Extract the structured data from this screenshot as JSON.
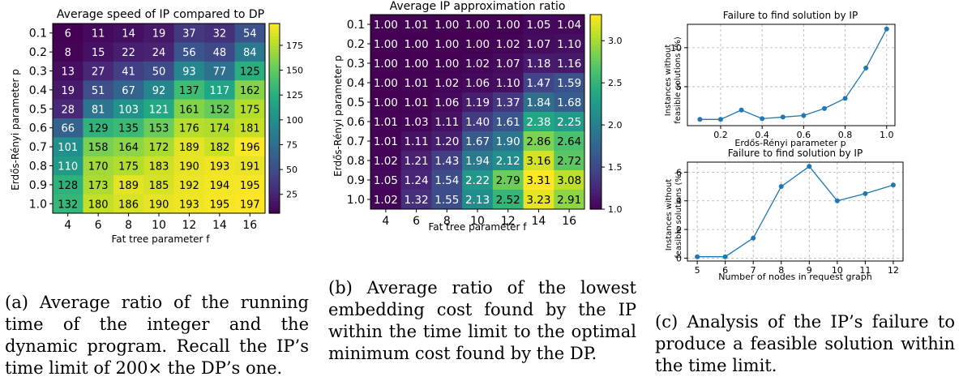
{
  "chart_data": [
    {
      "type": "heatmap",
      "title": "Average speed of IP compared to DP",
      "xlabel": "Fat tree parameter f",
      "ylabel": "Erdős-Rényi parameter p",
      "x_categories": [
        "4",
        "6",
        "8",
        "10",
        "12",
        "14",
        "16"
      ],
      "y_categories": [
        "0.1",
        "0.2",
        "0.3",
        "0.4",
        "0.5",
        "0.6",
        "0.7",
        "0.8",
        "0.9",
        "1.0"
      ],
      "values": [
        [
          6,
          11,
          14,
          19,
          37,
          32,
          54
        ],
        [
          8,
          15,
          22,
          24,
          56,
          48,
          84
        ],
        [
          13,
          27,
          41,
          50,
          93,
          77,
          125
        ],
        [
          19,
          51,
          67,
          92,
          137,
          117,
          162
        ],
        [
          28,
          81,
          103,
          121,
          161,
          152,
          175
        ],
        [
          66,
          129,
          135,
          153,
          176,
          174,
          181
        ],
        [
          101,
          158,
          164,
          172,
          189,
          182,
          196
        ],
        [
          110,
          170,
          175,
          183,
          190,
          193,
          191
        ],
        [
          128,
          173,
          189,
          185,
          192,
          194,
          195
        ],
        [
          132,
          180,
          186,
          190,
          193,
          195,
          197
        ]
      ],
      "value_labels": [
        [
          "6",
          "11",
          "14",
          "19",
          "37",
          "32",
          "54"
        ],
        [
          "8",
          "15",
          "22",
          "24",
          "56",
          "48",
          "84"
        ],
        [
          "13",
          "27",
          "41",
          "50",
          "93",
          "77",
          "125"
        ],
        [
          "19",
          "51",
          "67",
          "92",
          "137",
          "117",
          "162"
        ],
        [
          "28",
          "81",
          "103",
          "121",
          "161",
          "152",
          "175"
        ],
        [
          "66",
          "129",
          "135",
          "153",
          "176",
          "174",
          "181"
        ],
        [
          "101",
          "158",
          "164",
          "172",
          "189",
          "182",
          "196"
        ],
        [
          "110",
          "170",
          "175",
          "183",
          "190",
          "193",
          "191"
        ],
        [
          "128",
          "173",
          "189",
          "185",
          "192",
          "194",
          "195"
        ],
        [
          "132",
          "180",
          "186",
          "190",
          "193",
          "195",
          "197"
        ]
      ],
      "colorscale": "viridis",
      "vmin": 6,
      "vmax": 197,
      "colorbar_ticks": [
        25,
        50,
        75,
        100,
        125,
        150,
        175
      ],
      "colorbar_tick_labels": [
        "25",
        "50",
        "75",
        "100",
        "125",
        "150",
        "175"
      ]
    },
    {
      "type": "heatmap",
      "title": "Average IP approximation ratio",
      "xlabel": "Fat tree parameter f",
      "ylabel": "Erdős-Rényi parameter p",
      "x_categories": [
        "4",
        "6",
        "8",
        "10",
        "12",
        "14",
        "16"
      ],
      "y_categories": [
        "0.1",
        "0.2",
        "0.3",
        "0.4",
        "0.5",
        "0.6",
        "0.7",
        "0.8",
        "0.9",
        "1.0"
      ],
      "values": [
        [
          1.0,
          1.01,
          1.0,
          1.0,
          1.0,
          1.05,
          1.04
        ],
        [
          1.0,
          1.0,
          1.0,
          1.0,
          1.02,
          1.07,
          1.1
        ],
        [
          1.0,
          1.0,
          1.0,
          1.02,
          1.07,
          1.18,
          1.16
        ],
        [
          1.0,
          1.01,
          1.02,
          1.06,
          1.1,
          1.47,
          1.59
        ],
        [
          1.0,
          1.01,
          1.06,
          1.19,
          1.37,
          1.84,
          1.68
        ],
        [
          1.01,
          1.03,
          1.11,
          1.4,
          1.61,
          2.38,
          2.25
        ],
        [
          1.01,
          1.11,
          1.2,
          1.67,
          1.9,
          2.86,
          2.64
        ],
        [
          1.02,
          1.21,
          1.43,
          1.94,
          2.12,
          3.16,
          2.72
        ],
        [
          1.05,
          1.24,
          1.54,
          2.22,
          2.79,
          3.31,
          3.08
        ],
        [
          1.02,
          1.32,
          1.55,
          2.13,
          2.52,
          3.23,
          2.91
        ]
      ],
      "value_labels": [
        [
          "1.00",
          "1.01",
          "1.00",
          "1.00",
          "1.00",
          "1.05",
          "1.04"
        ],
        [
          "1.00",
          "1.00",
          "1.00",
          "1.00",
          "1.02",
          "1.07",
          "1.10"
        ],
        [
          "1.00",
          "1.00",
          "1.00",
          "1.02",
          "1.07",
          "1.18",
          "1.16"
        ],
        [
          "1.00",
          "1.01",
          "1.02",
          "1.06",
          "1.10",
          "1.47",
          "1.59"
        ],
        [
          "1.00",
          "1.01",
          "1.06",
          "1.19",
          "1.37",
          "1.84",
          "1.68"
        ],
        [
          "1.01",
          "1.03",
          "1.11",
          "1.40",
          "1.61",
          "2.38",
          "2.25"
        ],
        [
          "1.01",
          "1.11",
          "1.20",
          "1.67",
          "1.90",
          "2.86",
          "2.64"
        ],
        [
          "1.02",
          "1.21",
          "1.43",
          "1.94",
          "2.12",
          "3.16",
          "2.72"
        ],
        [
          "1.05",
          "1.24",
          "1.54",
          "2.22",
          "2.79",
          "3.31",
          "3.08"
        ],
        [
          "1.02",
          "1.32",
          "1.55",
          "2.13",
          "2.52",
          "3.23",
          "2.91"
        ]
      ],
      "colorscale": "viridis",
      "vmin": 1.0,
      "vmax": 3.31,
      "colorbar_ticks": [
        1.0,
        1.5,
        2.0,
        2.5,
        3.0
      ],
      "colorbar_tick_labels": [
        "1.0",
        "1.5",
        "2.0",
        "2.5",
        "3.0"
      ]
    },
    {
      "type": "line",
      "title": "Failure to find solution by IP",
      "xlabel": "Erdős-Rényi parameter p",
      "ylabel": "Instances without feasible solutions (%)",
      "x": [
        0.1,
        0.2,
        0.3,
        0.4,
        0.5,
        0.6,
        0.7,
        0.8,
        0.9,
        1.0
      ],
      "y": [
        0.8,
        0.8,
        2.0,
        0.9,
        1.1,
        1.3,
        2.2,
        3.5,
        7.4,
        12.4
      ],
      "xlim": [
        0.04,
        1.04
      ],
      "ylim": [
        0,
        13
      ],
      "xticks": [
        0.2,
        0.4,
        0.6,
        0.8,
        1.0
      ],
      "xtick_labels": [
        "0.2",
        "0.4",
        "0.6",
        "0.8",
        "1.0"
      ],
      "yticks": [
        5,
        10
      ],
      "ytick_labels": [
        "5",
        "10"
      ],
      "grid": true,
      "color": "#1f77b4"
    },
    {
      "type": "line",
      "title": "Failure to find solution by IP",
      "xlabel": "Number of nodes in request graph",
      "ylabel": "Instances without feasible solutions (%)",
      "x": [
        5,
        6,
        7,
        8,
        9,
        10,
        11,
        12
      ],
      "y": [
        0.1,
        0.1,
        1.4,
        5.0,
        6.4,
        4.0,
        4.5,
        5.1
      ],
      "xlim": [
        4.65,
        12.35
      ],
      "ylim": [
        -0.2,
        6.7
      ],
      "xticks": [
        5,
        6,
        7,
        8,
        9,
        10,
        11,
        12
      ],
      "xtick_labels": [
        "5",
        "6",
        "7",
        "8",
        "9",
        "10",
        "11",
        "12"
      ],
      "yticks": [
        0,
        2,
        4,
        6
      ],
      "ytick_labels": [
        "0",
        "2",
        "4",
        "6"
      ],
      "grid": true,
      "color": "#1f77b4"
    }
  ],
  "captions": {
    "a": "(a) Average ratio of the running time of the integer and the dynamic program. Recall the IP’s time limit of 200× the DP’s one.",
    "b": "(b) Average ratio of the lowest embedding cost found by the IP within the time limit to the optimal minimum cost found by the DP.",
    "c": "(c) Analysis of the IP’s failure to produce a feasible solution within the time limit."
  }
}
